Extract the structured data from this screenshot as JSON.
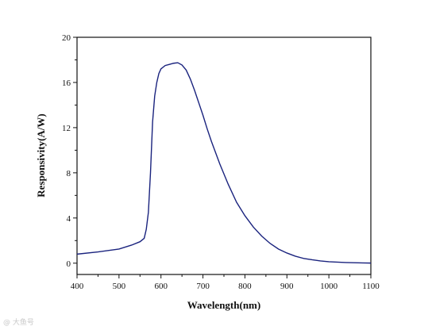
{
  "chart_data": {
    "type": "line",
    "title": "",
    "xlabel": "Wavelength(nm)",
    "ylabel": "Responsivity(A/W)",
    "xlim": [
      400,
      1100
    ],
    "ylim": [
      -1,
      20
    ],
    "xticks": [
      400,
      500,
      600,
      700,
      800,
      900,
      1000,
      1100
    ],
    "yticks": [
      0,
      4,
      8,
      12,
      16,
      20
    ],
    "grid": false,
    "legend": "none",
    "line_color": "#1a237e",
    "series": [
      {
        "x": [
          400,
          450,
          500,
          530,
          550,
          560,
          565,
          570,
          575,
          580,
          585,
          590,
          595,
          600,
          610,
          620,
          630,
          640,
          650,
          660,
          670,
          680,
          690,
          700,
          710,
          720,
          740,
          760,
          780,
          800,
          820,
          840,
          860,
          880,
          900,
          920,
          940,
          960,
          980,
          1000,
          1020,
          1040,
          1060,
          1080,
          1100
        ],
        "values": [
          0.8,
          1.0,
          1.25,
          1.6,
          1.9,
          2.2,
          3.0,
          4.5,
          8.0,
          12.5,
          14.8,
          16.0,
          16.8,
          17.2,
          17.5,
          17.6,
          17.7,
          17.75,
          17.55,
          17.1,
          16.3,
          15.3,
          14.2,
          13.1,
          11.9,
          10.8,
          8.8,
          7.0,
          5.4,
          4.2,
          3.2,
          2.4,
          1.75,
          1.25,
          0.9,
          0.62,
          0.42,
          0.3,
          0.2,
          0.13,
          0.09,
          0.06,
          0.04,
          0.02,
          0.01
        ]
      }
    ]
  },
  "watermark": {
    "text": "@ 大鱼号"
  }
}
